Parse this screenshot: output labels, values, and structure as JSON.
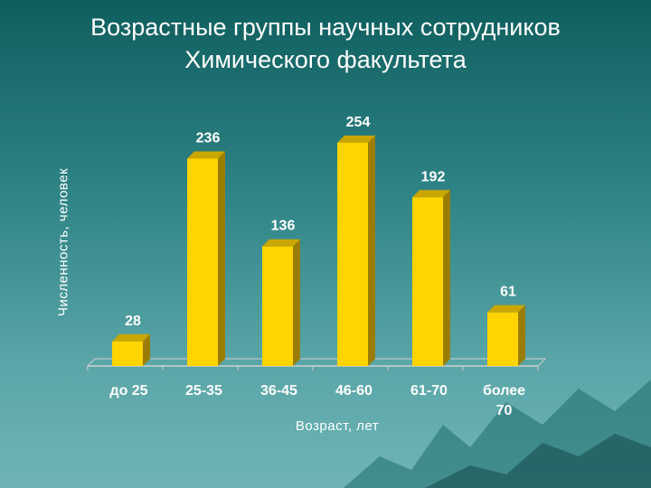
{
  "title_line1": "Возрастные группы научных сотрудников",
  "title_line2": "Химического факультета",
  "colors": {
    "bar_front": "#ffd400",
    "bar_side": "#9a7d00",
    "bar_top": "#c9a600",
    "axis": "#cfcfcf"
  },
  "chart_data": {
    "type": "bar",
    "title": "Возрастные группы научных сотрудников Химического факультета",
    "xlabel": "Возраст, лет",
    "ylabel": "Численность, человек",
    "categories": [
      "до 25",
      "25-35",
      "36-45",
      "46-60",
      "61-70",
      "более 70"
    ],
    "values": [
      28,
      236,
      136,
      254,
      192,
      61
    ],
    "ylim": [
      0,
      254
    ],
    "grid": false,
    "legend": "none"
  }
}
